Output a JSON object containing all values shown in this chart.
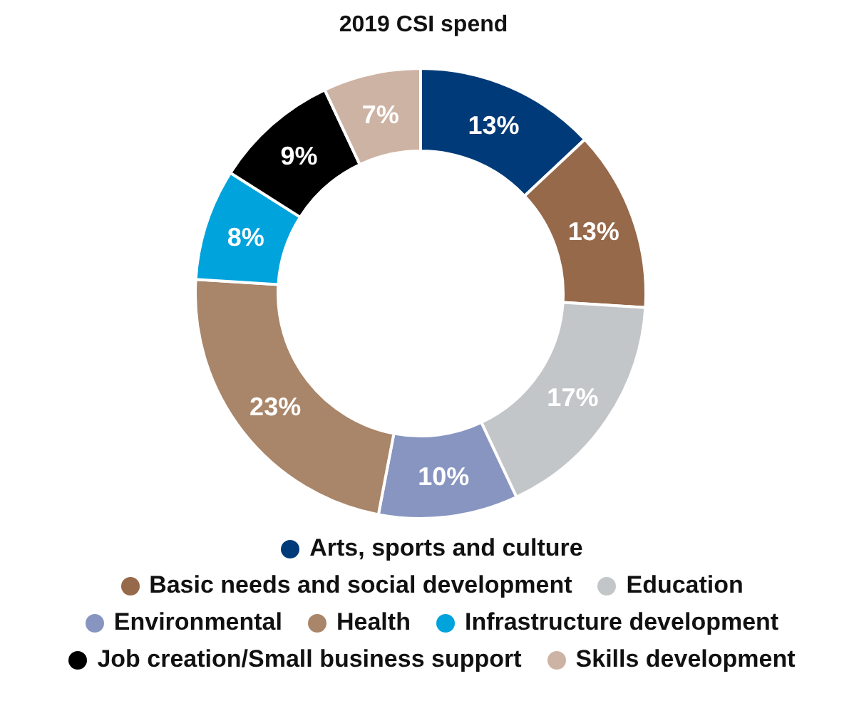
{
  "chart_data": {
    "type": "donut",
    "title": "2019 CSI spend",
    "categories": [
      "Arts, sports and culture",
      "Basic needs and social development",
      "Education",
      "Environmental",
      "Health",
      "Infrastructure development",
      "Job creation/Small business support",
      "Skills development"
    ],
    "values": [
      13,
      13,
      17,
      10,
      23,
      8,
      9,
      7
    ],
    "colors": [
      "#003a78",
      "#96694a",
      "#c3c6c8",
      "#8795c0",
      "#a98569",
      "#00a3dc",
      "#000000",
      "#cdb3a3"
    ],
    "value_labels": [
      "13%",
      "13%",
      "17%",
      "10%",
      "23%",
      "8%",
      "9%",
      "7%"
    ],
    "legend": "bottom"
  }
}
